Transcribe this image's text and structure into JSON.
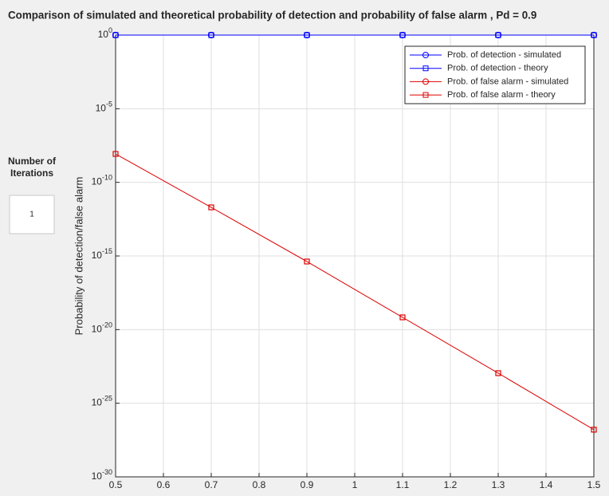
{
  "chart_data": {
    "type": "line",
    "title": "Comparison of simulated and theoretical probability of detection and probability of false alarm , Pd = 0.9",
    "ylabel": "Probability of detection/false alarm",
    "x": [
      0.5,
      0.7,
      0.9,
      1.1,
      1.3,
      1.5
    ],
    "series": [
      {
        "name": "Prob. of detection - simulated",
        "color": "#0000ff",
        "marker": "circle",
        "values": [
          1,
          1,
          1,
          1,
          1,
          1
        ]
      },
      {
        "name": "Prob. of detection - theory",
        "color": "#0000ff",
        "marker": "square",
        "values": [
          1,
          1,
          1,
          1,
          1,
          1
        ]
      },
      {
        "name": "Prob. of false alarm - simulated",
        "color": "#dd0000",
        "marker": "circle",
        "values": [
          null,
          null,
          null,
          null,
          null,
          null
        ]
      },
      {
        "name": "Prob. of false alarm - theory",
        "color": "#dd0000",
        "marker": "square",
        "values": [
          8.5e-09,
          2e-12,
          4.2e-16,
          6.8e-20,
          1.1e-23,
          1.6e-27
        ]
      }
    ],
    "xlim": [
      0.5,
      1.5
    ],
    "xticks": [
      0.5,
      0.6,
      0.7,
      0.8,
      0.9,
      1,
      1.1,
      1.2,
      1.3,
      1.4,
      1.5
    ],
    "ylim": [
      1e-30,
      1
    ],
    "yscale": "log",
    "yticks": [
      {
        "value": 1e-30,
        "label": "10^-30"
      },
      {
        "value": 1e-25,
        "label": "10^-25"
      },
      {
        "value": 1e-20,
        "label": "10^-20"
      },
      {
        "value": 1e-15,
        "label": "10^-15"
      },
      {
        "value": 1e-10,
        "label": "10^-10"
      },
      {
        "value": 1e-05,
        "label": "10^-5"
      },
      {
        "value": 1,
        "label": "10^0"
      }
    ],
    "grid": true,
    "legend": "upper right"
  },
  "ui": {
    "iterations_label": [
      "Number of",
      "Iterations"
    ],
    "iterations_value": "1"
  }
}
